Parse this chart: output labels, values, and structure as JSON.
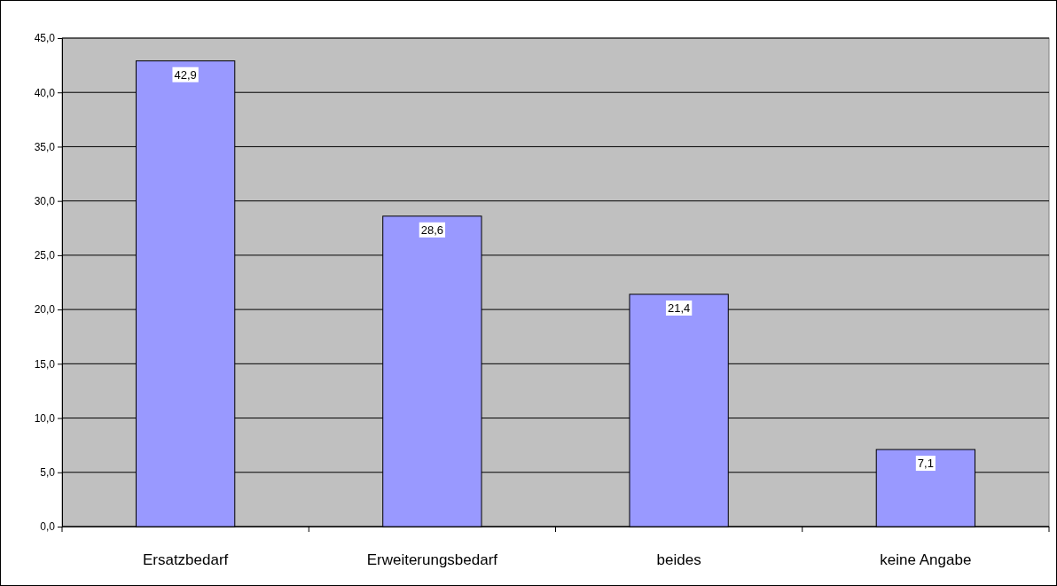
{
  "chart_data": {
    "type": "bar",
    "categories": [
      "Ersatzbedarf",
      "Erweiterungsbedarf",
      "beides",
      "keine Angabe"
    ],
    "values": [
      42.9,
      28.6,
      21.4,
      7.1
    ],
    "value_labels": [
      "42,9",
      "28,6",
      "21,4",
      "7,1"
    ],
    "color": "#9999ff",
    "ylim": [
      0,
      45
    ],
    "yticks": [
      {
        "value": 0,
        "label": "0,0"
      },
      {
        "value": 5,
        "label": "5,0"
      },
      {
        "value": 10,
        "label": "10,0"
      },
      {
        "value": 15,
        "label": "15,0"
      },
      {
        "value": 20,
        "label": "20,0"
      },
      {
        "value": 25,
        "label": "25,0"
      },
      {
        "value": 30,
        "label": "30,0"
      },
      {
        "value": 35,
        "label": "35,0"
      },
      {
        "value": 40,
        "label": "40,0"
      },
      {
        "value": 45,
        "label": "45,0"
      }
    ],
    "grid": "y"
  }
}
